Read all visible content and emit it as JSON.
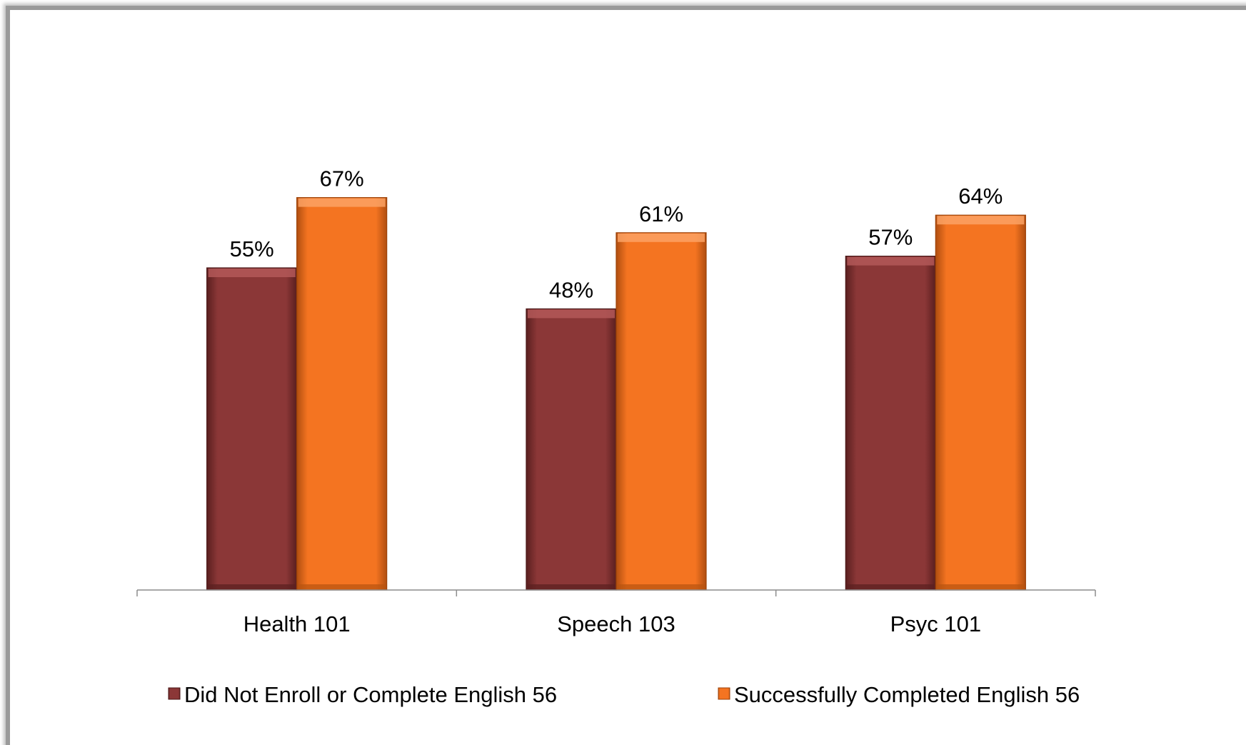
{
  "chart_data": {
    "type": "bar",
    "categories": [
      "Health 101",
      "Speech 103",
      "Psyc 101"
    ],
    "series": [
      {
        "name": "Did Not Enroll or Complete English 56",
        "values": [
          55,
          48,
          57
        ],
        "labels": [
          "55%",
          "48%",
          "57%"
        ],
        "color": "#8b3737"
      },
      {
        "name": "Successfully Completed English 56",
        "values": [
          67,
          61,
          64
        ],
        "labels": [
          "67%",
          "61%",
          "64%"
        ],
        "color": "#f47421"
      }
    ],
    "ylim": [
      0,
      100
    ],
    "grid": false,
    "legend": "bottom"
  }
}
